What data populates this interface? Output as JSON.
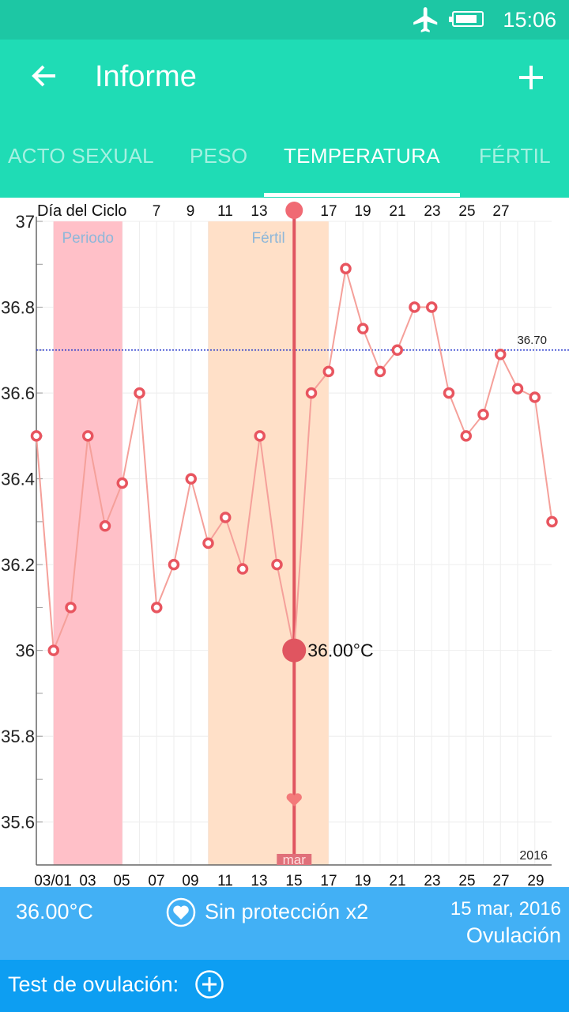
{
  "status_bar": {
    "time": "15:06",
    "battery_fraction": 0.85,
    "icons": [
      "airplane-icon",
      "battery-icon"
    ]
  },
  "header": {
    "title": "Informe",
    "back_icon": "arrow-left-icon",
    "add_icon": "plus-icon"
  },
  "tabs": [
    {
      "label": "ACTO SEXUAL",
      "active": false
    },
    {
      "label": "PESO",
      "active": false
    },
    {
      "label": "TEMPERATURA",
      "active": true
    },
    {
      "label": "FÉRTIL",
      "active": false
    }
  ],
  "colors": {
    "status_bar": "#1dc7a4",
    "app_bar": "#1fdcb5",
    "period_band": "#ffc0c8",
    "fertile_band": "#ffe0c8",
    "line": "#f5a09a",
    "point": "#e8555f",
    "selected": "#e05560",
    "reference_line": "#2233cc",
    "info_bar": "#42b0f5",
    "bottom_bar": "#0d9ef2"
  },
  "chart_data": {
    "type": "line",
    "title": "",
    "top_axis_label": "Día del Ciclo",
    "cycle_day_ticks": [
      "7",
      "9",
      "11",
      "13",
      "15",
      "17",
      "19",
      "21",
      "23",
      "25",
      "27"
    ],
    "selected_cycle_day": "15",
    "x_tick_labels": [
      "03/01",
      "03",
      "05",
      "07",
      "09",
      "11",
      "13",
      "15",
      "17",
      "19",
      "21",
      "23",
      "25",
      "27",
      "29"
    ],
    "y_tick_labels": [
      "37",
      "36.8",
      "36.6",
      "36.4",
      "36.2",
      "36",
      "35.8",
      "35.6"
    ],
    "ylim": [
      35.5,
      37
    ],
    "year_label": "2016",
    "reference_line": {
      "value": 36.7,
      "label": "36.70"
    },
    "bands": [
      {
        "label": "Periodo",
        "from_day": 1,
        "to_day": 5
      },
      {
        "label": "Fértil",
        "from_day": 10,
        "to_day": 17
      }
    ],
    "selected_point": {
      "day": 15,
      "value": 36.0,
      "label": "36.00°C",
      "month_label": "mar",
      "intercourse_marker": "heart-icon"
    },
    "series": [
      {
        "x": [
          0,
          1,
          2,
          3,
          4,
          5,
          6,
          7,
          8,
          9,
          10,
          11,
          12,
          13,
          14,
          15,
          16,
          17,
          18,
          19,
          20,
          21,
          22,
          23,
          24,
          25,
          26,
          27,
          28,
          29,
          30
        ],
        "values": [
          36.5,
          36.0,
          36.1,
          36.5,
          36.29,
          36.39,
          36.6,
          36.1,
          36.2,
          36.4,
          36.25,
          36.31,
          36.19,
          36.5,
          36.2,
          36.0,
          36.6,
          36.65,
          36.89,
          36.75,
          36.65,
          36.7,
          36.8,
          36.8,
          36.6,
          36.5,
          36.55,
          36.69,
          36.61,
          36.59,
          36.3
        ]
      }
    ]
  },
  "info_bar": {
    "temperature": "36.00°C",
    "protection_icon": "heart-icon",
    "protection": "Sin protección x2",
    "date": "15 mar, 2016",
    "phase": "Ovulación"
  },
  "bottom_bar": {
    "ovulation_test_label": "Test de ovulación:",
    "add_icon": "plus-circle-icon"
  }
}
